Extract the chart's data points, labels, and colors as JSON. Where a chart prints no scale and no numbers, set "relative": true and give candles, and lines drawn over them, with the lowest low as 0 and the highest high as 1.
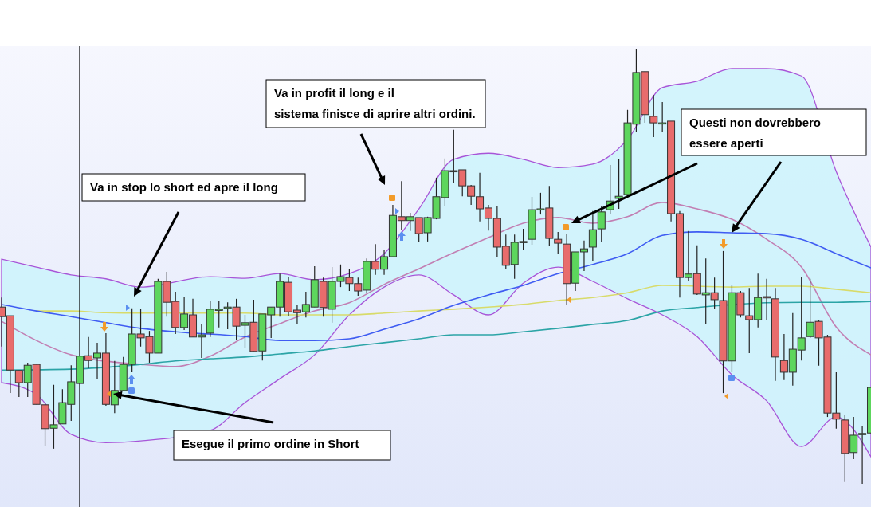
{
  "chart_data": {
    "type": "candlestick",
    "relative": true,
    "categories": [
      null,
      null,
      null,
      null,
      null,
      null,
      null,
      null,
      null,
      null,
      null,
      null,
      null,
      null,
      null,
      null,
      null,
      null,
      null,
      null,
      null,
      null,
      null,
      null,
      null,
      null,
      null,
      null,
      null,
      null,
      null,
      null,
      null,
      null,
      null,
      null,
      null,
      null,
      null,
      null,
      null,
      null,
      null,
      null,
      null,
      null,
      null,
      null,
      null,
      null,
      null,
      null,
      null,
      null,
      null,
      null,
      null,
      null,
      null,
      null,
      null,
      null,
      null,
      null,
      null,
      null,
      null,
      null,
      null,
      null,
      null,
      null,
      null,
      null,
      null,
      null,
      null,
      null,
      null,
      null,
      null,
      null,
      null,
      null,
      null,
      null,
      null,
      null,
      null,
      null,
      null,
      null,
      null,
      null,
      null,
      null,
      null,
      null,
      null,
      null,
      null
    ],
    "ohlc": [
      [
        0.407,
        0.429,
        0.316,
        0.385
      ],
      [
        0.387,
        0.387,
        0.209,
        0.262
      ],
      [
        0.261,
        0.261,
        0.2,
        0.233
      ],
      [
        0.233,
        0.279,
        0.2,
        0.273
      ],
      [
        0.275,
        0.275,
        0.183,
        0.183
      ],
      [
        0.182,
        0.187,
        0.086,
        0.127
      ],
      [
        0.128,
        0.228,
        0.081,
        0.136
      ],
      [
        0.138,
        0.218,
        0.138,
        0.187
      ],
      [
        0.183,
        0.273,
        0.145,
        0.235
      ],
      [
        0.231,
        0.294,
        0.231,
        0.294
      ],
      [
        0.295,
        0.338,
        0.266,
        0.284
      ],
      [
        0.29,
        0.325,
        0.242,
        0.301
      ],
      [
        0.301,
        0.347,
        0.18,
        0.183
      ],
      [
        0.182,
        0.283,
        0.163,
        0.215
      ],
      [
        0.215,
        0.292,
        0.215,
        0.275
      ],
      [
        0.275,
        0.404,
        0.257,
        0.345
      ],
      [
        0.345,
        0.402,
        0.316,
        0.336
      ],
      [
        0.339,
        0.352,
        0.279,
        0.301
      ],
      [
        0.301,
        0.472,
        0.301,
        0.466
      ],
      [
        0.466,
        0.488,
        0.385,
        0.418
      ],
      [
        0.42,
        0.442,
        0.345,
        0.36
      ],
      [
        0.36,
        0.431,
        0.354,
        0.391
      ],
      [
        0.389,
        0.426,
        0.338,
        0.338
      ],
      [
        0.338,
        0.367,
        0.29,
        0.343
      ],
      [
        0.347,
        0.422,
        0.338,
        0.402
      ],
      [
        0.4,
        0.42,
        0.36,
        0.402
      ],
      [
        0.404,
        0.418,
        0.356,
        0.407
      ],
      [
        0.407,
        0.426,
        0.332,
        0.363
      ],
      [
        0.365,
        0.389,
        0.312,
        0.371
      ],
      [
        0.372,
        0.424,
        0.305,
        0.305
      ],
      [
        0.306,
        0.391,
        0.284,
        0.391
      ],
      [
        0.389,
        0.407,
        0.336,
        0.407
      ],
      [
        0.407,
        0.484,
        0.385,
        0.466
      ],
      [
        0.464,
        0.477,
        0.387,
        0.396
      ],
      [
        0.4,
        0.413,
        0.367,
        0.394
      ],
      [
        0.396,
        0.442,
        0.383,
        0.413
      ],
      [
        0.407,
        0.501,
        0.407,
        0.47
      ],
      [
        0.466,
        0.475,
        0.385,
        0.406
      ],
      [
        0.402,
        0.499,
        0.371,
        0.466
      ],
      [
        0.466,
        0.505,
        0.453,
        0.477
      ],
      [
        0.475,
        0.494,
        0.444,
        0.461
      ],
      [
        0.461,
        0.475,
        0.433,
        0.444
      ],
      [
        0.446,
        0.519,
        0.44,
        0.512
      ],
      [
        0.512,
        0.552,
        0.481,
        0.494
      ],
      [
        0.494,
        0.538,
        0.481,
        0.523
      ],
      [
        0.523,
        0.642,
        0.523,
        0.618
      ],
      [
        0.615,
        0.697,
        0.585,
        0.606
      ],
      [
        0.606,
        0.624,
        0.582,
        0.615
      ],
      [
        0.613,
        0.613,
        0.558,
        0.576
      ],
      [
        0.578,
        0.615,
        0.558,
        0.613
      ],
      [
        0.611,
        0.705,
        0.609,
        0.661
      ],
      [
        0.659,
        0.749,
        0.64,
        0.721
      ],
      [
        0.721,
        0.815,
        0.692,
        0.721
      ],
      [
        0.723,
        0.723,
        0.662,
        0.686
      ],
      [
        0.686,
        0.688,
        0.642,
        0.662
      ],
      [
        0.661,
        0.716,
        0.604,
        0.633
      ],
      [
        0.635,
        0.642,
        0.583,
        0.611
      ],
      [
        0.611,
        0.64,
        0.523,
        0.545
      ],
      [
        0.547,
        0.574,
        0.494,
        0.503
      ],
      [
        0.505,
        0.574,
        0.472,
        0.556
      ],
      [
        0.558,
        0.587,
        0.539,
        0.558
      ],
      [
        0.563,
        0.661,
        0.55,
        0.631
      ],
      [
        0.633,
        0.67,
        0.62,
        0.633
      ],
      [
        0.635,
        0.686,
        0.547,
        0.565
      ],
      [
        0.563,
        0.58,
        0.53,
        0.554
      ],
      [
        0.552,
        0.576,
        0.411,
        0.461
      ],
      [
        0.462,
        0.534,
        0.444,
        0.534
      ],
      [
        0.534,
        0.56,
        0.49,
        0.541
      ],
      [
        0.545,
        0.628,
        0.512,
        0.585
      ],
      [
        0.587,
        0.64,
        0.556,
        0.626
      ],
      [
        0.631,
        0.734,
        0.622,
        0.651
      ],
      [
        0.657,
        0.747,
        0.633,
        0.662
      ],
      [
        0.666,
        0.861,
        0.666,
        0.831
      ],
      [
        0.828,
        1,
        0.811,
        0.947
      ],
      [
        0.949,
        0.949,
        0.831,
        0.85
      ],
      [
        0.846,
        0.895,
        0.798,
        0.831
      ],
      [
        0.831,
        0.879,
        0.811,
        0.831
      ],
      [
        0.835,
        0.835,
        0.604,
        0.622
      ],
      [
        0.622,
        0.628,
        0.429,
        0.475
      ],
      [
        0.475,
        0.582,
        0.466,
        0.483
      ],
      [
        0.484,
        0.549,
        0.435,
        0.437
      ],
      [
        0.435,
        0.519,
        0.367,
        0.44
      ],
      [
        0.44,
        0.475,
        0.402,
        0.424
      ],
      [
        0.422,
        0.536,
        0.209,
        0.283
      ],
      [
        0.283,
        0.459,
        0.257,
        0.44
      ],
      [
        0.44,
        0.444,
        0.383,
        0.389
      ],
      [
        0.387,
        0.451,
        0.301,
        0.378
      ],
      [
        0.378,
        0.484,
        0.36,
        0.429
      ],
      [
        0.431,
        0.472,
        0.376,
        0.428
      ],
      [
        0.426,
        0.451,
        0.237,
        0.292
      ],
      [
        0.284,
        0.345,
        0.239,
        0.257
      ],
      [
        0.257,
        0.393,
        0.226,
        0.31
      ],
      [
        0.308,
        0.477,
        0.284,
        0.336
      ],
      [
        0.339,
        0.472,
        0.336,
        0.372
      ],
      [
        0.374,
        0.378,
        0.272,
        0.336
      ],
      [
        0.338,
        0.343,
        0.154,
        0.163
      ],
      [
        0.163,
        0.257,
        0.127,
        0.149
      ],
      [
        0.147,
        0.158,
        0.004,
        0.07
      ],
      [
        0.072,
        0.154,
        0.057,
        0.112
      ],
      [
        0.116,
        0.134,
        0,
        0.116
      ],
      [
        0.117,
        0.222,
        0.117,
        0.222
      ]
    ],
    "series": [
      {
        "type": "line",
        "color": "#c27fb3",
        "values": [
          0.374,
          null,
          null,
          null,
          0.33,
          null,
          null,
          null,
          0.297,
          null,
          null,
          null,
          null,
          null,
          null,
          null,
          0.275,
          null,
          null,
          null,
          0.27,
          null,
          null,
          null,
          0.294,
          null,
          null,
          null,
          0.338,
          null,
          null,
          null,
          0.369,
          null,
          null,
          null,
          0.398,
          null,
          null,
          null,
          0.417,
          null,
          null,
          null,
          0.459,
          null,
          null,
          null,
          0.495,
          null,
          null,
          null,
          0.532,
          null,
          null,
          null,
          0.567,
          null,
          null,
          null,
          0.6,
          null,
          null,
          null,
          0.613,
          null,
          null,
          null,
          0.6,
          null,
          null,
          null,
          0.615,
          null,
          null,
          null,
          0.648,
          null,
          null,
          null,
          0.633,
          null,
          null,
          null,
          0.609,
          null,
          null,
          null,
          0.563,
          null,
          null,
          null,
          0.499,
          null,
          null,
          null,
          0.361,
          null,
          null,
          null,
          0.297
        ],
        "upper": [
          0.517,
          null,
          null,
          null,
          0.499,
          null,
          null,
          null,
          0.481,
          null,
          null,
          null,
          0.472,
          null,
          null,
          null,
          0.453,
          null,
          null,
          null,
          null,
          null,
          null,
          null,
          0.477,
          null,
          null,
          null,
          0.473,
          null,
          null,
          null,
          0.484,
          null,
          null,
          null,
          0.47,
          null,
          null,
          null,
          0.484,
          null,
          null,
          null,
          0.53,
          null,
          null,
          null,
          0.633,
          null,
          null,
          null,
          0.747,
          null,
          null,
          null,
          0.761,
          null,
          null,
          null,
          0.747,
          null,
          null,
          null,
          0.728,
          null,
          null,
          null,
          0.736,
          null,
          null,
          null,
          0.793,
          null,
          null,
          null,
          0.912,
          null,
          null,
          null,
          0.927,
          null,
          null,
          null,
          0.956,
          null,
          null,
          null,
          0.956,
          null,
          null,
          null,
          0.939,
          null,
          null,
          null,
          0.719,
          null,
          null,
          null,
          0.545
        ],
        "lower": [
          0.233,
          null,
          null,
          null,
          0.206,
          null,
          null,
          null,
          0.114,
          null,
          null,
          null,
          0.095,
          null,
          null,
          null,
          0.099,
          null,
          null,
          null,
          null,
          null,
          null,
          null,
          0.123,
          null,
          null,
          null,
          0.187,
          null,
          null,
          null,
          0.242,
          null,
          null,
          null,
          0.297,
          null,
          null,
          null,
          0.389,
          null,
          null,
          null,
          0.453,
          null,
          null,
          null,
          0.481,
          null,
          null,
          null,
          0.435,
          null,
          null,
          null,
          0.389,
          null,
          null,
          null,
          0.462,
          null,
          null,
          null,
          0.499,
          null,
          null,
          null,
          0.466,
          null,
          null,
          null,
          0.426,
          null,
          null,
          null,
          0.389,
          null,
          null,
          null,
          0.339,
          null,
          null,
          null,
          0.251,
          null,
          null,
          null,
          0.191,
          null,
          null,
          null,
          0.086,
          null,
          null,
          null,
          0.154,
          null,
          null,
          null,
          0.062
        ]
      },
      {
        "type": "line",
        "color": "#d8db6a",
        "values": [
          null,
          null,
          null,
          null,
          0.398,
          null,
          null,
          null,
          0.398,
          null,
          null,
          null,
          0.394,
          null,
          null,
          null,
          0.393,
          null,
          null,
          null,
          null,
          null,
          null,
          null,
          null,
          null,
          null,
          null,
          0.393,
          null,
          null,
          null,
          0.389,
          null,
          null,
          null,
          0.389,
          null,
          null,
          null,
          0.389,
          null,
          null,
          null,
          0.393,
          null,
          null,
          null,
          0.398,
          null,
          null,
          null,
          0.402,
          null,
          null,
          null,
          0.407,
          null,
          null,
          null,
          0.413,
          null,
          null,
          null,
          0.422,
          null,
          null,
          null,
          0.429,
          null,
          null,
          null,
          0.44,
          null,
          null,
          null,
          0.457,
          null,
          null,
          null,
          null,
          null,
          null,
          null,
          0.453,
          null,
          null,
          null,
          0.455,
          null,
          null,
          null,
          0.455,
          null,
          null,
          null,
          0.448,
          null,
          null,
          null,
          0.44
        ]
      },
      {
        "type": "line",
        "color": "#2ba4a6",
        "values": [
          0.262,
          null,
          null,
          null,
          null,
          null,
          null,
          null,
          0.264,
          null,
          null,
          null,
          null,
          null,
          null,
          null,
          0.275,
          null,
          null,
          null,
          0.283,
          null,
          null,
          null,
          0.288,
          null,
          null,
          null,
          0.292,
          null,
          null,
          null,
          0.299,
          null,
          null,
          null,
          0.306,
          null,
          null,
          null,
          0.316,
          null,
          null,
          null,
          0.325,
          null,
          null,
          null,
          0.334,
          null,
          null,
          null,
          0.343,
          null,
          null,
          null,
          0.343,
          null,
          null,
          null,
          0.35,
          null,
          null,
          null,
          0.358,
          null,
          null,
          null,
          0.367,
          null,
          null,
          null,
          0.376,
          null,
          null,
          null,
          0.398,
          null,
          null,
          null,
          0.406,
          null,
          null,
          null,
          null,
          null,
          null,
          null,
          0.417,
          null,
          null,
          null,
          0.418,
          null,
          null,
          null,
          0.418,
          null,
          null,
          null,
          0.42
        ]
      },
      {
        "type": "line",
        "color": "#3f5cf2",
        "values": [
          0.413,
          null,
          null,
          null,
          0.398,
          null,
          null,
          null,
          0.385,
          null,
          null,
          null,
          0.371,
          null,
          null,
          null,
          0.358,
          null,
          null,
          null,
          0.35,
          null,
          null,
          null,
          null,
          null,
          null,
          null,
          0.339,
          null,
          null,
          null,
          0.33,
          null,
          null,
          null,
          0.33,
          null,
          null,
          null,
          0.334,
          null,
          null,
          null,
          0.356,
          null,
          null,
          null,
          0.38,
          null,
          null,
          null,
          0.411,
          null,
          null,
          null,
          0.435,
          null,
          null,
          null,
          0.457,
          null,
          null,
          null,
          0.484,
          null,
          null,
          null,
          0.505,
          null,
          null,
          null,
          0.53,
          null,
          null,
          null,
          0.572,
          null,
          null,
          null,
          0.58,
          null,
          null,
          null,
          0.578,
          null,
          null,
          null,
          0.576,
          null,
          null,
          null,
          0.563,
          null,
          null,
          null,
          0.53,
          null,
          null,
          null,
          0.497
        ]
      }
    ],
    "annotations": [
      "Va in stop lo short ed apre il long",
      "Va in profit il long e il sistema finisce di aprire altri ordini.",
      "Questi non dovrebbero essere aperti",
      "Esegue il primo ordine in Short"
    ]
  }
}
